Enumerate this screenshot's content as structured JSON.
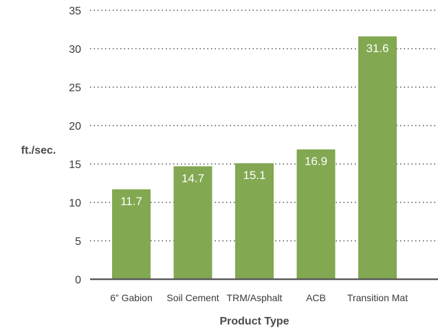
{
  "chart_data": {
    "type": "bar",
    "title": "",
    "xlabel": "Product Type",
    "ylabel": "ft./sec.",
    "categories": [
      "6” Gabion",
      "Soil Cement",
      "TRM/Asphalt",
      "ACB",
      "Transition Mat"
    ],
    "values": [
      11.7,
      14.7,
      15.1,
      16.9,
      31.6
    ],
    "data_labels": [
      "11.7",
      "14.7",
      "15.1",
      "16.9",
      "31.6"
    ],
    "yticks": [
      0,
      5,
      10,
      15,
      20,
      25,
      30,
      35
    ],
    "ylim": [
      0,
      35
    ],
    "grid": true,
    "legend": "none",
    "bar_color": "#82a852"
  }
}
